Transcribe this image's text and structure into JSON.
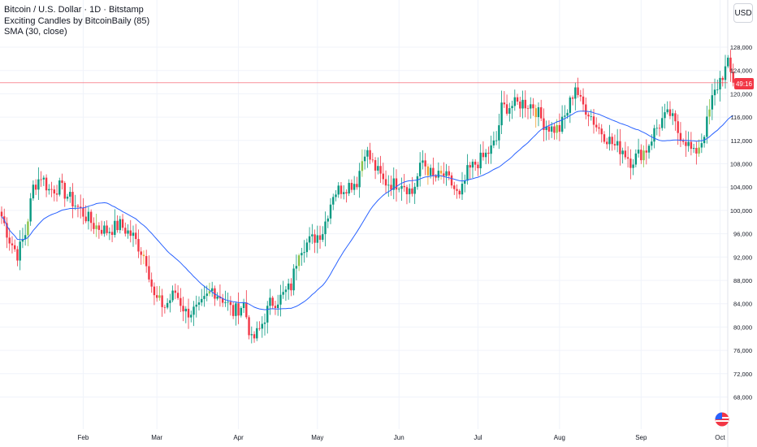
{
  "legend": {
    "symbol": "Bitcoin / U.S. Dollar · 1D · Bitstamp",
    "indicator": "Exciting Candles by BitcoinBaily (85)",
    "sma": "SMA (30, close)"
  },
  "currency_button": "USD",
  "countdown": "49:16",
  "colors": {
    "up": "#089981",
    "down": "#f23645",
    "exciting_up": "#8bc34a",
    "exciting_down": "#f0a030",
    "sma": "#2962ff",
    "grid": "#f0f3fa",
    "price_line": "#f23645"
  },
  "chart_data": {
    "type": "candlestick",
    "y_ticks": [
      68000,
      72000,
      76000,
      80000,
      84000,
      88000,
      92000,
      96000,
      100000,
      104000,
      108000,
      112000,
      116000,
      120000,
      124000,
      128000
    ],
    "y_tick_labels": [
      "68,000",
      "72,000",
      "76,000",
      "80,000",
      "84,000",
      "88,000",
      "92,000",
      "96,000",
      "100,000",
      "104,000",
      "108,000",
      "112,000",
      "116,000",
      "120,000",
      "124,000",
      "128,000"
    ],
    "x_labels": [
      "Feb",
      "Mar",
      "Apr",
      "May",
      "Jun",
      "Jul",
      "Aug",
      "Sep",
      "Oct"
    ],
    "x_label_day_index": [
      31,
      59,
      90,
      120,
      151,
      181,
      212,
      243,
      273
    ],
    "start": "2025-01-01",
    "days": 279,
    "current_price": 121900,
    "close_key_points": [
      [
        0,
        99000
      ],
      [
        3,
        95000
      ],
      [
        6,
        92500
      ],
      [
        9,
        96000
      ],
      [
        12,
        104000
      ],
      [
        15,
        106000
      ],
      [
        18,
        103500
      ],
      [
        22,
        104000
      ],
      [
        26,
        102000
      ],
      [
        30,
        100000
      ],
      [
        35,
        97500
      ],
      [
        40,
        96500
      ],
      [
        45,
        97500
      ],
      [
        50,
        95500
      ],
      [
        55,
        91500
      ],
      [
        58,
        85000
      ],
      [
        62,
        83500
      ],
      [
        66,
        86000
      ],
      [
        70,
        82500
      ],
      [
        75,
        83000
      ],
      [
        80,
        86500
      ],
      [
        85,
        84500
      ],
      [
        88,
        82500
      ],
      [
        92,
        84000
      ],
      [
        95,
        77500
      ],
      [
        98,
        79500
      ],
      [
        102,
        84000
      ],
      [
        106,
        85000
      ],
      [
        110,
        87000
      ],
      [
        113,
        93500
      ],
      [
        118,
        95000
      ],
      [
        122,
        96500
      ],
      [
        126,
        103000
      ],
      [
        130,
        104000
      ],
      [
        135,
        105000
      ],
      [
        138,
        110500
      ],
      [
        141,
        108000
      ],
      [
        145,
        105000
      ],
      [
        149,
        104500
      ],
      [
        152,
        105000
      ],
      [
        156,
        103000
      ],
      [
        160,
        108500
      ],
      [
        164,
        105500
      ],
      [
        168,
        106000
      ],
      [
        171,
        104500
      ],
      [
        174,
        102000
      ],
      [
        177,
        106500
      ],
      [
        180,
        108000
      ],
      [
        183,
        109000
      ],
      [
        186,
        110500
      ],
      [
        188,
        112000
      ],
      [
        190,
        117500
      ],
      [
        194,
        118000
      ],
      [
        198,
        118500
      ],
      [
        202,
        118000
      ],
      [
        206,
        115000
      ],
      [
        209,
        114000
      ],
      [
        212,
        114000
      ],
      [
        215,
        117000
      ],
      [
        218,
        121500
      ],
      [
        220,
        118500
      ],
      [
        223,
        117000
      ],
      [
        226,
        114500
      ],
      [
        230,
        112500
      ],
      [
        233,
        111000
      ],
      [
        236,
        110500
      ],
      [
        239,
        108500
      ],
      [
        242,
        109500
      ],
      [
        245,
        110500
      ],
      [
        248,
        113500
      ],
      [
        251,
        115500
      ],
      [
        254,
        116500
      ],
      [
        257,
        113500
      ],
      [
        260,
        112000
      ],
      [
        263,
        109500
      ],
      [
        266,
        112000
      ],
      [
        268,
        115000
      ],
      [
        270,
        119000
      ],
      [
        273,
        122500
      ],
      [
        276,
        125000
      ],
      [
        278,
        121900
      ]
    ],
    "exciting_candle_days": [
      10,
      36,
      54,
      60,
      79,
      113,
      137,
      162,
      167,
      203,
      211,
      244,
      265,
      269
    ],
    "sma_period": 30,
    "legend_placement": "top-left"
  }
}
